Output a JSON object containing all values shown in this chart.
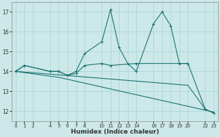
{
  "xlabel": "Humidex (Indice chaleur)",
  "bg_color": "#cce8e8",
  "grid_color": "#b0d8d8",
  "line_color": "#1a7070",
  "ylim": [
    11.5,
    17.5
  ],
  "xlim": [
    -0.5,
    23.5
  ],
  "yticks": [
    12,
    13,
    14,
    15,
    16,
    17
  ],
  "xtick_positions": [
    0,
    1,
    2,
    4,
    5,
    6,
    7,
    8,
    10,
    11,
    12,
    13,
    14,
    16,
    17,
    18,
    19,
    20,
    22,
    23
  ],
  "xtick_labels": [
    "0",
    "1",
    "2",
    "4",
    "5",
    "6",
    "7",
    "8",
    "10",
    "11",
    "12",
    "13",
    "14",
    "16",
    "17",
    "18",
    "19",
    "20",
    "22",
    "23"
  ],
  "line1_x": [
    0,
    1,
    4,
    5,
    6,
    7,
    8,
    10,
    11,
    12,
    13,
    14,
    16,
    17,
    18,
    19,
    20,
    22,
    23
  ],
  "line1_y": [
    14.0,
    14.3,
    14.0,
    14.0,
    13.8,
    14.0,
    14.9,
    15.5,
    17.1,
    15.2,
    14.4,
    14.0,
    16.4,
    17.0,
    16.3,
    14.4,
    14.4,
    12.1,
    11.9
  ],
  "line2_x": [
    0,
    1,
    4,
    5,
    6,
    7,
    8,
    10,
    11,
    14,
    20
  ],
  "line2_y": [
    14.0,
    14.3,
    14.0,
    14.0,
    13.8,
    13.9,
    14.3,
    14.4,
    14.3,
    14.4,
    14.4
  ],
  "line3_x": [
    0,
    20,
    22,
    23
  ],
  "line3_y": [
    14.0,
    13.3,
    12.1,
    11.9
  ],
  "line4_x": [
    0,
    5,
    23
  ],
  "line4_y": [
    14.0,
    13.7,
    11.95
  ]
}
